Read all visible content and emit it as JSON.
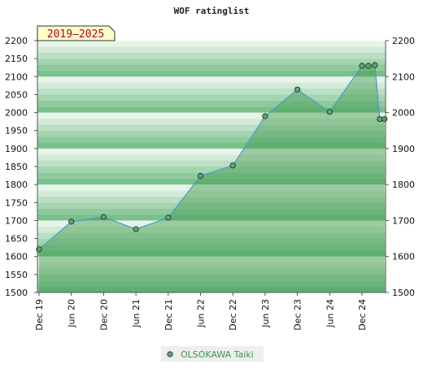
{
  "chart_data": {
    "type": "line",
    "title": "WOF ratinglist",
    "badge": "2019–2025",
    "ylim": [
      1500,
      2200
    ],
    "yticks": [
      1500,
      1550,
      1600,
      1650,
      1700,
      1750,
      1800,
      1850,
      1900,
      1950,
      2000,
      2050,
      2100,
      2150,
      2200
    ],
    "yticks_right": [
      1500,
      1600,
      1700,
      1800,
      1900,
      2000,
      2100,
      2200
    ],
    "xticks": [
      "Dec 19",
      "Jun 20",
      "Dec 20",
      "Jun 21",
      "Dec 21",
      "Jun 22",
      "Dec 22",
      "Jun 23",
      "Dec 23",
      "Jun 24",
      "Dec 24"
    ],
    "legend_position": "bottom",
    "series": [
      {
        "name": "OLSOKAWA Taiki",
        "color": "#4a9ad8",
        "points": [
          {
            "x": 0,
            "y": 1620
          },
          {
            "x": 1,
            "y": 1697
          },
          {
            "x": 2,
            "y": 1710
          },
          {
            "x": 3,
            "y": 1676
          },
          {
            "x": 4,
            "y": 1708
          },
          {
            "x": 5,
            "y": 1824
          },
          {
            "x": 6,
            "y": 1853
          },
          {
            "x": 7,
            "y": 1990
          },
          {
            "x": 8,
            "y": 2064
          },
          {
            "x": 9,
            "y": 2002
          },
          {
            "x": 10,
            "y": 2130
          },
          {
            "x": 10.2,
            "y": 2130
          },
          {
            "x": 10.4,
            "y": 2132
          },
          {
            "x": 10.55,
            "y": 1982
          },
          {
            "x": 10.7,
            "y": 1982
          }
        ]
      }
    ]
  },
  "colors": {
    "band_dark": "#7ac08c",
    "band_light": "#f0f8f1",
    "area": "#3d9a4c",
    "marker": "#5aa96a",
    "badge_bg": "#ffffc8"
  }
}
